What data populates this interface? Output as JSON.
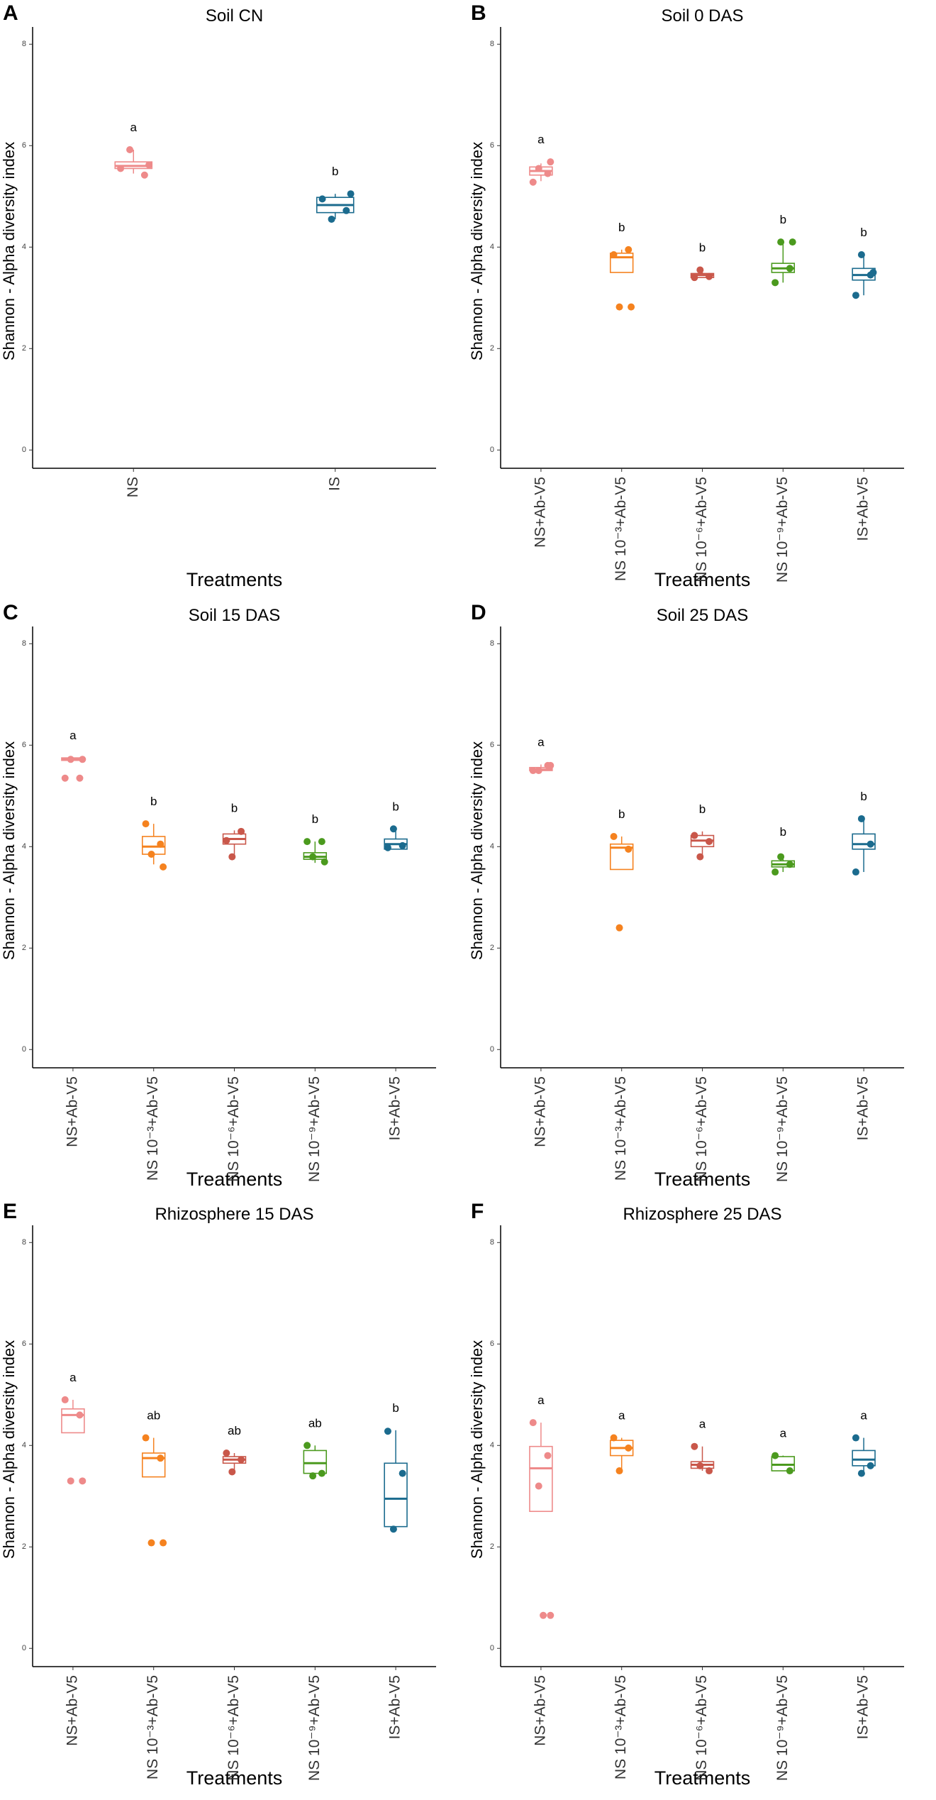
{
  "chart_data": [
    {
      "panel": "A",
      "type": "box",
      "title": "Soil CN",
      "xlabel": "Treatments",
      "ylabel": "Shannon - Alpha diversity index",
      "ylim": [
        -0.36,
        8.2
      ],
      "yticks": [
        0,
        2,
        4,
        6,
        8
      ],
      "categories": [
        "NS",
        "IS"
      ],
      "colors": [
        "#ee8a8a",
        "#1b6b8e"
      ],
      "boxes": [
        {
          "min": 5.45,
          "q1": 5.55,
          "median": 5.6,
          "q3": 5.68,
          "max": 5.92,
          "points": [
            5.55,
            5.42,
            5.92,
            5.62
          ]
        },
        {
          "min": 4.55,
          "q1": 4.68,
          "median": 4.83,
          "q3": 4.98,
          "max": 5.05,
          "points": [
            4.95,
            4.72,
            4.55,
            5.05
          ]
        }
      ],
      "letters": [
        "a",
        "b"
      ]
    },
    {
      "panel": "B",
      "type": "box",
      "title": "Soil 0 DAS",
      "xlabel": "Treatments",
      "ylabel": "Shannon - Alpha diversity index",
      "ylim": [
        -0.36,
        8.2
      ],
      "yticks": [
        0,
        2,
        4,
        6,
        8
      ],
      "categories": [
        "NS+Ab-V5",
        "NS 10⁻³+Ab-V5",
        "NS 10⁻⁶+Ab-V5",
        "NS 10⁻⁹+Ab-V5",
        "IS+Ab-V5"
      ],
      "colors": [
        "#ee8a8a",
        "#f5821f",
        "#c9574a",
        "#4b9a1e",
        "#1b6b8e"
      ],
      "boxes": [
        {
          "min": 5.3,
          "q1": 5.42,
          "median": 5.5,
          "q3": 5.58,
          "max": 5.65,
          "points": [
            5.28,
            5.45,
            5.55,
            5.68
          ]
        },
        {
          "min": 3.5,
          "q1": 3.5,
          "median": 3.8,
          "q3": 3.88,
          "max": 3.95,
          "points": [
            3.85,
            3.95,
            2.82,
            2.82
          ]
        },
        {
          "min": 3.4,
          "q1": 3.4,
          "median": 3.45,
          "q3": 3.48,
          "max": 3.55,
          "points": [
            3.4,
            3.42,
            3.55
          ]
        },
        {
          "min": 3.3,
          "q1": 3.5,
          "median": 3.58,
          "q3": 3.68,
          "max": 4.1,
          "points": [
            3.3,
            3.58,
            4.1,
            4.1
          ]
        },
        {
          "min": 3.05,
          "q1": 3.35,
          "median": 3.45,
          "q3": 3.58,
          "max": 3.85,
          "points": [
            3.05,
            3.45,
            3.85,
            3.5
          ]
        }
      ],
      "letters": [
        "a",
        "b",
        "b",
        "b",
        "b"
      ]
    },
    {
      "panel": "C",
      "type": "box",
      "title": "Soil 15 DAS",
      "xlabel": "Treatments",
      "ylabel": "Shannon - Alpha diversity index",
      "ylim": [
        -0.36,
        8.2
      ],
      "yticks": [
        0,
        2,
        4,
        6,
        8
      ],
      "categories": [
        "NS+Ab-V5",
        "NS 10⁻³+Ab-V5",
        "NS 10⁻⁶+Ab-V5",
        "NS 10⁻⁹+Ab-V5",
        "IS+Ab-V5"
      ],
      "colors": [
        "#ee8a8a",
        "#f5821f",
        "#c9574a",
        "#4b9a1e",
        "#1b6b8e"
      ],
      "boxes": [
        {
          "min": 5.7,
          "q1": 5.7,
          "median": 5.72,
          "q3": 5.75,
          "max": 5.75,
          "points": [
            5.35,
            5.35,
            5.72,
            5.72
          ]
        },
        {
          "min": 3.65,
          "q1": 3.85,
          "median": 4.0,
          "q3": 4.2,
          "max": 4.45,
          "points": [
            4.45,
            4.05,
            3.85,
            3.6
          ]
        },
        {
          "min": 3.8,
          "q1": 4.05,
          "median": 4.15,
          "q3": 4.25,
          "max": 4.32,
          "points": [
            4.12,
            4.3,
            3.8
          ]
        },
        {
          "min": 3.68,
          "q1": 3.75,
          "median": 3.8,
          "q3": 3.88,
          "max": 4.1,
          "points": [
            4.1,
            4.1,
            3.8,
            3.7
          ]
        },
        {
          "min": 3.95,
          "q1": 3.95,
          "median": 4.05,
          "q3": 4.15,
          "max": 4.35,
          "points": [
            3.98,
            4.02,
            4.35
          ]
        }
      ],
      "letters": [
        "a",
        "b",
        "b",
        "b",
        "b"
      ]
    },
    {
      "panel": "D",
      "type": "box",
      "title": "Soil 25 DAS",
      "xlabel": "Treatments",
      "ylabel": "Shannon - Alpha diversity index",
      "ylim": [
        -0.36,
        8.2
      ],
      "yticks": [
        0,
        2,
        4,
        6,
        8
      ],
      "categories": [
        "NS+Ab-V5",
        "NS 10⁻³+Ab-V5",
        "NS 10⁻⁶+Ab-V5",
        "NS 10⁻⁹+Ab-V5",
        "IS+Ab-V5"
      ],
      "colors": [
        "#ee8a8a",
        "#f5821f",
        "#c9574a",
        "#4b9a1e",
        "#1b6b8e"
      ],
      "boxes": [
        {
          "min": 5.48,
          "q1": 5.5,
          "median": 5.52,
          "q3": 5.56,
          "max": 5.62,
          "points": [
            5.5,
            5.6,
            5.5,
            5.6
          ]
        },
        {
          "min": 3.55,
          "q1": 3.55,
          "median": 3.98,
          "q3": 4.05,
          "max": 4.2,
          "points": [
            4.2,
            3.95,
            2.4
          ]
        },
        {
          "min": 3.8,
          "q1": 4.0,
          "median": 4.12,
          "q3": 4.22,
          "max": 4.3,
          "points": [
            4.22,
            4.1,
            3.8
          ]
        },
        {
          "min": 3.5,
          "q1": 3.6,
          "median": 3.65,
          "q3": 3.72,
          "max": 3.85,
          "points": [
            3.5,
            3.65,
            3.8
          ]
        },
        {
          "min": 3.5,
          "q1": 3.95,
          "median": 4.05,
          "q3": 4.25,
          "max": 4.55,
          "points": [
            3.5,
            4.05,
            4.55
          ]
        }
      ],
      "letters": [
        "a",
        "b",
        "b",
        "b",
        "b"
      ]
    },
    {
      "panel": "E",
      "type": "box",
      "title": "Rhizosphere 15 DAS",
      "xlabel": "Treatments",
      "ylabel": "Shannon - Alpha diversity index",
      "ylim": [
        -0.36,
        8.2
      ],
      "yticks": [
        0,
        2,
        4,
        6,
        8
      ],
      "categories": [
        "NS+Ab-V5",
        "NS 10⁻³+Ab-V5",
        "NS 10⁻⁶+Ab-V5",
        "NS 10⁻⁹+Ab-V5",
        "IS+Ab-V5"
      ],
      "colors": [
        "#ee8a8a",
        "#f5821f",
        "#c9574a",
        "#4b9a1e",
        "#1b6b8e"
      ],
      "boxes": [
        {
          "min": 4.25,
          "q1": 4.25,
          "median": 4.6,
          "q3": 4.72,
          "max": 4.9,
          "points": [
            4.9,
            4.6,
            3.3,
            3.3
          ]
        },
        {
          "min": 3.38,
          "q1": 3.38,
          "median": 3.75,
          "q3": 3.85,
          "max": 4.15,
          "points": [
            4.15,
            3.75,
            2.08,
            2.08
          ]
        },
        {
          "min": 3.5,
          "q1": 3.65,
          "median": 3.72,
          "q3": 3.78,
          "max": 3.85,
          "points": [
            3.85,
            3.72,
            3.48
          ]
        },
        {
          "min": 3.4,
          "q1": 3.45,
          "median": 3.65,
          "q3": 3.9,
          "max": 4.0,
          "points": [
            4.0,
            3.45,
            3.4
          ]
        },
        {
          "min": 2.35,
          "q1": 2.4,
          "median": 2.95,
          "q3": 3.65,
          "max": 4.3,
          "points": [
            4.28,
            3.45,
            2.35
          ]
        }
      ],
      "letters": [
        "a",
        "ab",
        "ab",
        "ab",
        "b"
      ]
    },
    {
      "panel": "F",
      "type": "box",
      "title": "Rhizosphere 25 DAS",
      "xlabel": "Treatments",
      "ylabel": "Shannon - Alpha diversity index",
      "ylim": [
        -0.36,
        8.2
      ],
      "yticks": [
        0,
        2,
        4,
        6,
        8
      ],
      "categories": [
        "NS+Ab-V5",
        "NS 10⁻³+Ab-V5",
        "NS 10⁻⁶+Ab-V5",
        "NS 10⁻⁹+Ab-V5",
        "IS+Ab-V5"
      ],
      "colors": [
        "#ee8a8a",
        "#f5821f",
        "#c9574a",
        "#4b9a1e",
        "#1b6b8e"
      ],
      "boxes": [
        {
          "min": 2.7,
          "q1": 2.7,
          "median": 3.55,
          "q3": 3.98,
          "max": 4.45,
          "points": [
            4.45,
            3.8,
            3.2,
            0.65,
            0.65
          ]
        },
        {
          "min": 3.5,
          "q1": 3.8,
          "median": 3.95,
          "q3": 4.1,
          "max": 4.15,
          "points": [
            4.15,
            3.95,
            3.5
          ]
        },
        {
          "min": 3.5,
          "q1": 3.55,
          "median": 3.62,
          "q3": 3.68,
          "max": 3.98,
          "points": [
            3.98,
            3.5,
            3.6
          ]
        },
        {
          "min": 3.5,
          "q1": 3.5,
          "median": 3.62,
          "q3": 3.78,
          "max": 3.8,
          "points": [
            3.8,
            3.5
          ]
        },
        {
          "min": 3.45,
          "q1": 3.6,
          "median": 3.72,
          "q3": 3.9,
          "max": 4.15,
          "points": [
            4.15,
            3.6,
            3.45
          ]
        }
      ],
      "letters": [
        "a",
        "a",
        "a",
        "a",
        "a"
      ]
    }
  ]
}
